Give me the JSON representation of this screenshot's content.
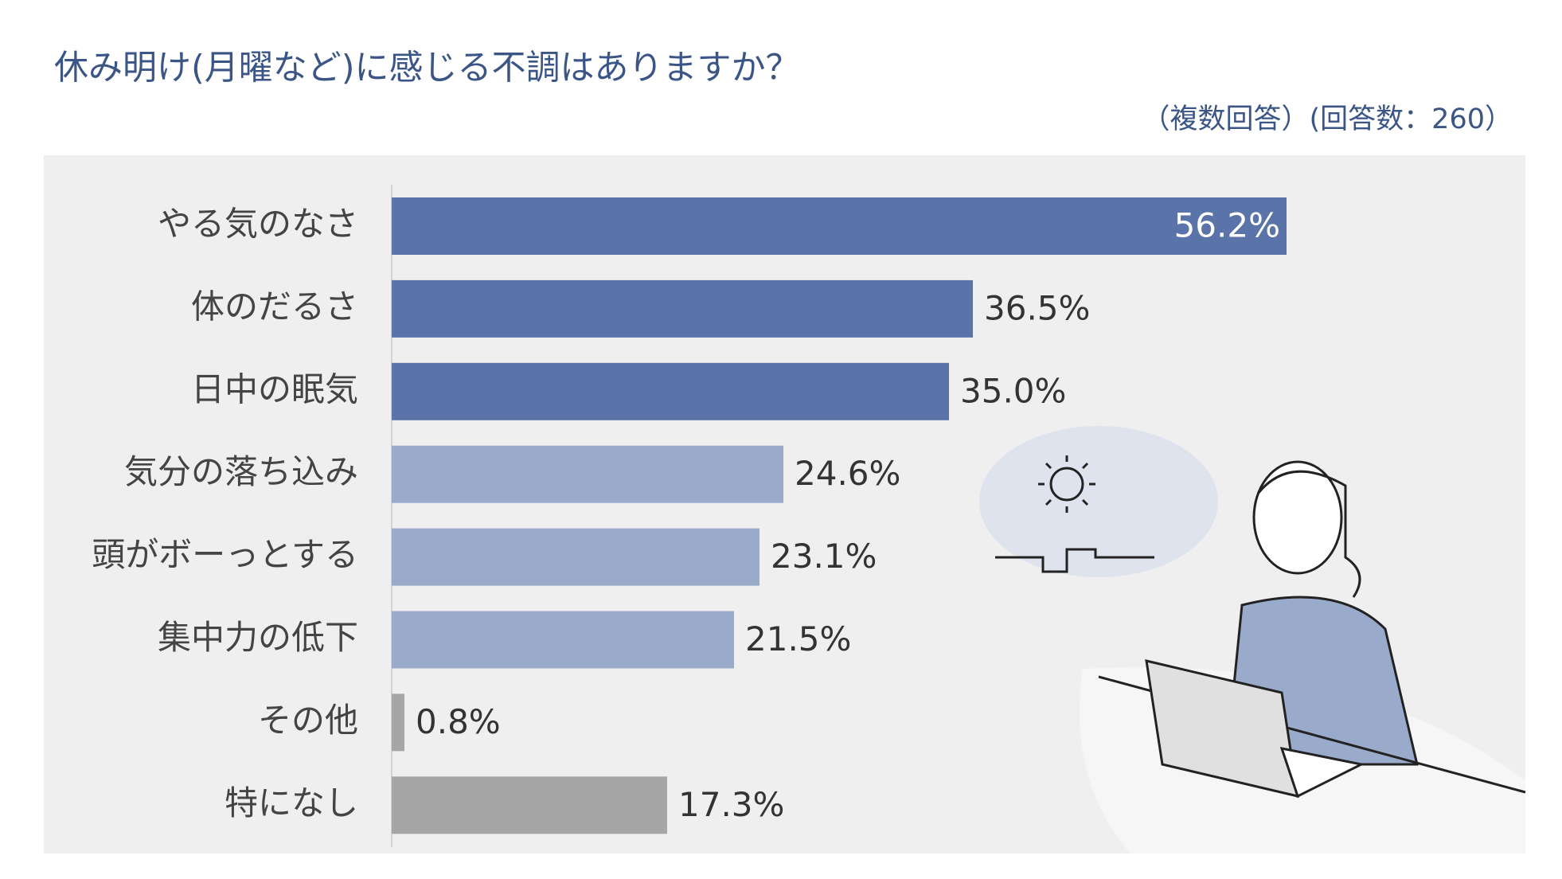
{
  "chart_data": {
    "type": "bar",
    "orientation": "horizontal",
    "title": "休み明け(月曜など)に感じる不調はありますか？",
    "subtitle": "（複数回答）(回答数：260）",
    "categories": [
      "やる気のなさ",
      "体のだるさ",
      "日中の眠気",
      "気分の落ち込み",
      "頭がボーっとする",
      "集中力の低下",
      "その他",
      "特になし"
    ],
    "values": [
      56.2,
      36.5,
      35.0,
      24.6,
      23.1,
      21.5,
      0.8,
      17.3
    ],
    "value_labels": [
      "56.2%",
      "36.5%",
      "35.0%",
      "24.6%",
      "23.1%",
      "21.5%",
      "0.8%",
      "17.3%"
    ],
    "colors": [
      "#5a73a8",
      "#5a73a8",
      "#5a73a8",
      "#9aaacb",
      "#9aaacb",
      "#9aaacb",
      "#a6a6a6",
      "#a6a6a6"
    ],
    "xlim": [
      0,
      60
    ]
  }
}
